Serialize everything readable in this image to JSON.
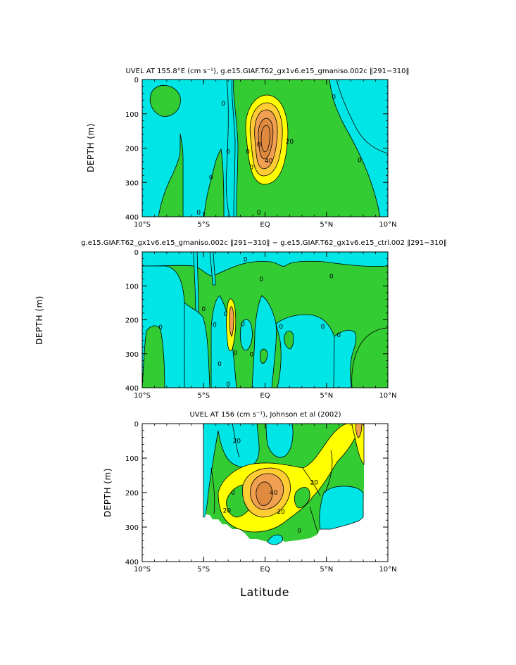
{
  "colors": {
    "cyan": "#00e5e5",
    "green": "#33cc33",
    "yellow": "#ffff00",
    "gold": "#ffcc33",
    "orange": "#f0a050",
    "deep_orange": "#e08a40",
    "line": "#000000"
  },
  "xlabel": "Latitude",
  "chart_data": [
    {
      "type": "contour",
      "title": "UVEL AT 155.8°E (cm s⁻¹), g.e15.GIAF.T62_gx1v6.e15_gmaniso.002c ‖291−310‖",
      "ylabel": "DEPTH (m)",
      "xlim": [
        -10,
        10
      ],
      "ylim": [
        400,
        0
      ],
      "x_ticks": [
        "10°S",
        "5°S",
        "EQ",
        "5°N",
        "10°N"
      ],
      "y_ticks": [
        "0",
        "100",
        "200",
        "300",
        "400"
      ],
      "contour_labels": [
        {
          "text": "0",
          "lat": -3.4,
          "depth": 70
        },
        {
          "text": "0",
          "lat": -3.0,
          "depth": 210
        },
        {
          "text": "0",
          "lat": -4.4,
          "depth": 285
        },
        {
          "text": "0",
          "lat": -0.5,
          "depth": 190
        },
        {
          "text": "0",
          "lat": -5.4,
          "depth": 388
        },
        {
          "text": "0",
          "lat": -0.5,
          "depth": 388
        },
        {
          "text": "0",
          "lat": 5.6,
          "depth": 50
        },
        {
          "text": "0",
          "lat": 7.7,
          "depth": 235
        },
        {
          "text": "0",
          "lat": -1.4,
          "depth": 210
        },
        {
          "text": "20",
          "lat": 2.0,
          "depth": 180
        },
        {
          "text": "40",
          "lat": 0.3,
          "depth": 237
        },
        {
          "text": "0",
          "lat": -1.1,
          "depth": 255
        }
      ]
    },
    {
      "type": "contour",
      "title": "g.e15.GIAF.T62_gx1v6.e15_gmaniso.002c ‖291−310‖ − g.e15.GIAF.T62_gx1v6.e15_ctrl.002 ‖291−310‖",
      "ylabel": "DEPTH (m)",
      "xlim": [
        -10,
        10
      ],
      "ylim": [
        400,
        0
      ],
      "x_ticks": [
        "10°S",
        "5°S",
        "EQ",
        "5°N",
        "10°N"
      ],
      "y_ticks": [
        "0",
        "100",
        "200",
        "300",
        "400"
      ],
      "contour_labels": [
        {
          "text": "0",
          "lat": -3.2,
          "depth": 182
        },
        {
          "text": "0",
          "lat": -5.0,
          "depth": 168
        },
        {
          "text": "0",
          "lat": -3.0,
          "depth": 390
        },
        {
          "text": "0",
          "lat": -8.5,
          "depth": 222
        },
        {
          "text": "0",
          "lat": -4.1,
          "depth": 215
        },
        {
          "text": "0",
          "lat": -3.7,
          "depth": 330
        },
        {
          "text": "0",
          "lat": -1.6,
          "depth": 22
        },
        {
          "text": "0",
          "lat": -2.4,
          "depth": 297
        },
        {
          "text": "0",
          "lat": -1.1,
          "depth": 302
        },
        {
          "text": "0",
          "lat": -0.3,
          "depth": 80
        },
        {
          "text": "0",
          "lat": 1.3,
          "depth": 220
        },
        {
          "text": "0",
          "lat": 5.4,
          "depth": 72
        },
        {
          "text": "0",
          "lat": 4.7,
          "depth": 220
        },
        {
          "text": "0",
          "lat": 6.0,
          "depth": 245
        },
        {
          "text": "0",
          "lat": -1.8,
          "depth": 212
        }
      ]
    },
    {
      "type": "contour",
      "title": "UVEL AT 156 (cm s⁻¹), Johnson et al (2002)",
      "ylabel": "DEPTH (m)",
      "xlim": [
        -10,
        10
      ],
      "ylim": [
        400,
        0
      ],
      "x_ticks": [
        "10°S",
        "5°S",
        "EQ",
        "5°N",
        "10°N"
      ],
      "y_ticks": [
        "0",
        "100",
        "200",
        "300",
        "400"
      ],
      "contour_labels": [
        {
          "text": "20",
          "lat": -2.3,
          "depth": 50
        },
        {
          "text": "0",
          "lat": -2.6,
          "depth": 200
        },
        {
          "text": "20",
          "lat": -3.1,
          "depth": 252
        },
        {
          "text": "40",
          "lat": 0.7,
          "depth": 200
        },
        {
          "text": "20",
          "lat": 1.3,
          "depth": 255
        },
        {
          "text": "20",
          "lat": 4.0,
          "depth": 170
        },
        {
          "text": "0",
          "lat": 2.8,
          "depth": 310
        }
      ]
    }
  ]
}
